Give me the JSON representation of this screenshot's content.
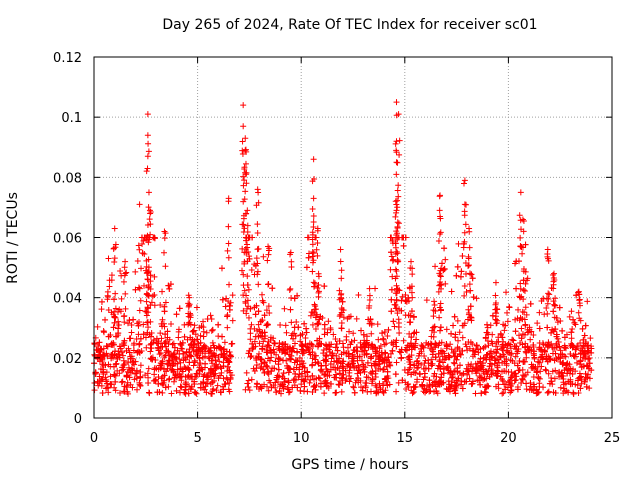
{
  "chart_data": {
    "type": "scatter",
    "title": "Day 265 of 2024, Rate Of TEC Index for receiver sc01",
    "xlabel": "GPS time / hours",
    "ylabel": "ROTI / TECUs",
    "xlim": [
      0,
      25
    ],
    "ylim": [
      0,
      0.12
    ],
    "xticks": [
      0,
      5,
      10,
      15,
      20,
      25
    ],
    "yticks": [
      0,
      0.02,
      0.04,
      0.06,
      0.08,
      0.1,
      0.12
    ],
    "xtick_labels": [
      "0",
      "5",
      "10",
      "15",
      "20",
      "25"
    ],
    "ytick_labels": [
      "0",
      "0.02",
      "0.04",
      "0.06",
      "0.08",
      "0.1",
      "0.12"
    ],
    "grid": true,
    "marker": "+",
    "color": "#ff0000",
    "data_span_hours": [
      0,
      24
    ],
    "gap_hours": [
      6.7,
      7.3
    ],
    "typical_band": [
      0.008,
      0.025
    ],
    "series": [
      {
        "name": "sc01 ROTI",
        "peaks": [
          {
            "x": 0.7,
            "y": 0.053
          },
          {
            "x": 1.0,
            "y": 0.063
          },
          {
            "x": 1.5,
            "y": 0.052
          },
          {
            "x": 2.2,
            "y": 0.071
          },
          {
            "x": 2.6,
            "y": 0.101
          },
          {
            "x": 2.6,
            "y": 0.094
          },
          {
            "x": 2.6,
            "y": 0.087
          },
          {
            "x": 2.7,
            "y": 0.069
          },
          {
            "x": 3.4,
            "y": 0.062
          },
          {
            "x": 4.6,
            "y": 0.04
          },
          {
            "x": 6.5,
            "y": 0.073
          },
          {
            "x": 7.2,
            "y": 0.104
          },
          {
            "x": 7.2,
            "y": 0.097
          },
          {
            "x": 7.3,
            "y": 0.093
          },
          {
            "x": 7.3,
            "y": 0.089
          },
          {
            "x": 7.4,
            "y": 0.069
          },
          {
            "x": 7.9,
            "y": 0.076
          },
          {
            "x": 8.4,
            "y": 0.057
          },
          {
            "x": 9.5,
            "y": 0.055
          },
          {
            "x": 10.6,
            "y": 0.086
          },
          {
            "x": 10.6,
            "y": 0.073
          },
          {
            "x": 10.8,
            "y": 0.063
          },
          {
            "x": 11.9,
            "y": 0.056
          },
          {
            "x": 13.3,
            "y": 0.043
          },
          {
            "x": 14.6,
            "y": 0.105
          },
          {
            "x": 14.7,
            "y": 0.101
          },
          {
            "x": 14.6,
            "y": 0.092
          },
          {
            "x": 14.6,
            "y": 0.085
          },
          {
            "x": 14.6,
            "y": 0.069
          },
          {
            "x": 15.3,
            "y": 0.052
          },
          {
            "x": 16.7,
            "y": 0.074
          },
          {
            "x": 16.7,
            "y": 0.067
          },
          {
            "x": 17.9,
            "y": 0.079
          },
          {
            "x": 17.9,
            "y": 0.071
          },
          {
            "x": 18.1,
            "y": 0.063
          },
          {
            "x": 19.4,
            "y": 0.045
          },
          {
            "x": 20.6,
            "y": 0.075
          },
          {
            "x": 20.7,
            "y": 0.066
          },
          {
            "x": 21.9,
            "y": 0.056
          },
          {
            "x": 22.2,
            "y": 0.048
          },
          {
            "x": 23.4,
            "y": 0.042
          }
        ]
      }
    ]
  }
}
